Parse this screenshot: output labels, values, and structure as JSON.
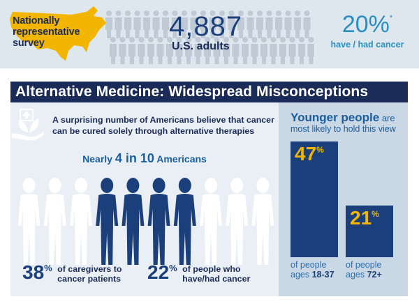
{
  "banner": {
    "survey_label": "Nationally representative survey",
    "adults_count": "4,887",
    "adults_label": "U.S. adults",
    "cancer_percent": "20%",
    "cancer_footnote": "*",
    "cancer_label": "have / had cancer",
    "colors": {
      "map": "#f2b600",
      "background": "#dfe7ee",
      "crowd": "#bfcad6"
    },
    "icons": {
      "map": "us-map-icon",
      "crowd": "crowd-silhouettes-icon"
    }
  },
  "title": "Alternative Medicine: Widespread Misconceptions",
  "left_panel": {
    "intro": "A surprising number of Americans believe that cancer can be cured solely through alternative therapies",
    "nearly_prefix": "Nearly ",
    "nearly_number": "4 in 10",
    "nearly_suffix": " Americans",
    "people_total": 10,
    "people_highlighted": [
      4,
      5,
      6,
      7
    ],
    "colors": {
      "highlight": "#1b3f7a",
      "plain": "#ffffff"
    },
    "icons": {
      "alt-medicine": "medical-leaf-hand-icon"
    },
    "stats": [
      {
        "value": "38",
        "pct": "%",
        "text_line1": "of caregivers to",
        "text_line2": "cancer patients"
      },
      {
        "value": "22",
        "pct": "%",
        "text_line1": "of people who",
        "text_line2": "have/had cancer"
      }
    ]
  },
  "right_panel": {
    "headline": "Younger people",
    "headline_suffix": " are",
    "subline": "most likely to hold this view",
    "bars": [
      {
        "value": 47,
        "value_label": "47",
        "pct": "%",
        "label_line1": "of people",
        "label_prefix": "ages ",
        "label_bold": "18-37"
      },
      {
        "value": 21,
        "value_label": "21",
        "pct": "%",
        "label_line1": "of people",
        "label_prefix": "ages ",
        "label_bold": "72+"
      }
    ],
    "colors": {
      "bar": "#1b3f7a",
      "value": "#f2b600"
    }
  }
}
